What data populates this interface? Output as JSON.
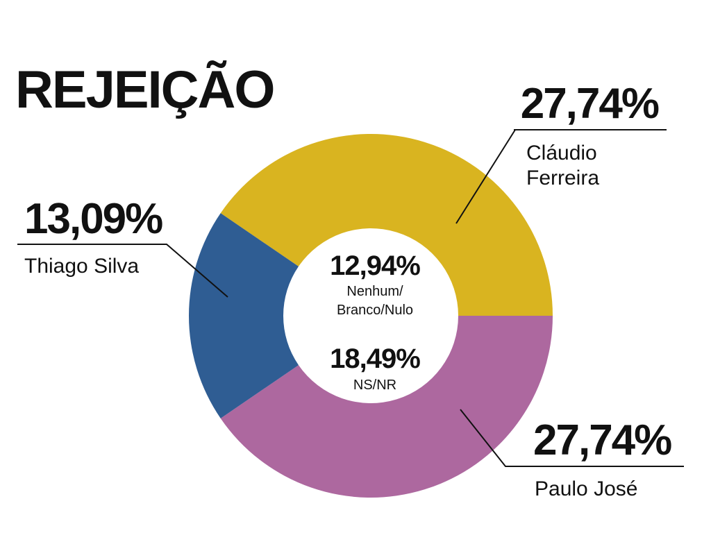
{
  "chart_data": {
    "type": "donut",
    "title": "REJEIÇÃO",
    "categories": [
      [
        "Cláudio",
        "Ferreira"
      ],
      [
        "Paulo José"
      ],
      [
        "Thiago Silva"
      ]
    ],
    "values": [
      27.74,
      27.74,
      13.09
    ],
    "value_labels": [
      "27,74%",
      "27,74%",
      "13,09%"
    ],
    "colors": [
      "#d9b420",
      "#ad689f",
      "#2f5d93"
    ],
    "center": [
      {
        "lines": [
          "Nenhum/",
          "Branco/Nulo"
        ],
        "value": 12.94,
        "value_label": "12,94%"
      },
      {
        "lines": [
          "NS/NR"
        ],
        "value": 18.49,
        "value_label": "18,49%"
      }
    ]
  }
}
